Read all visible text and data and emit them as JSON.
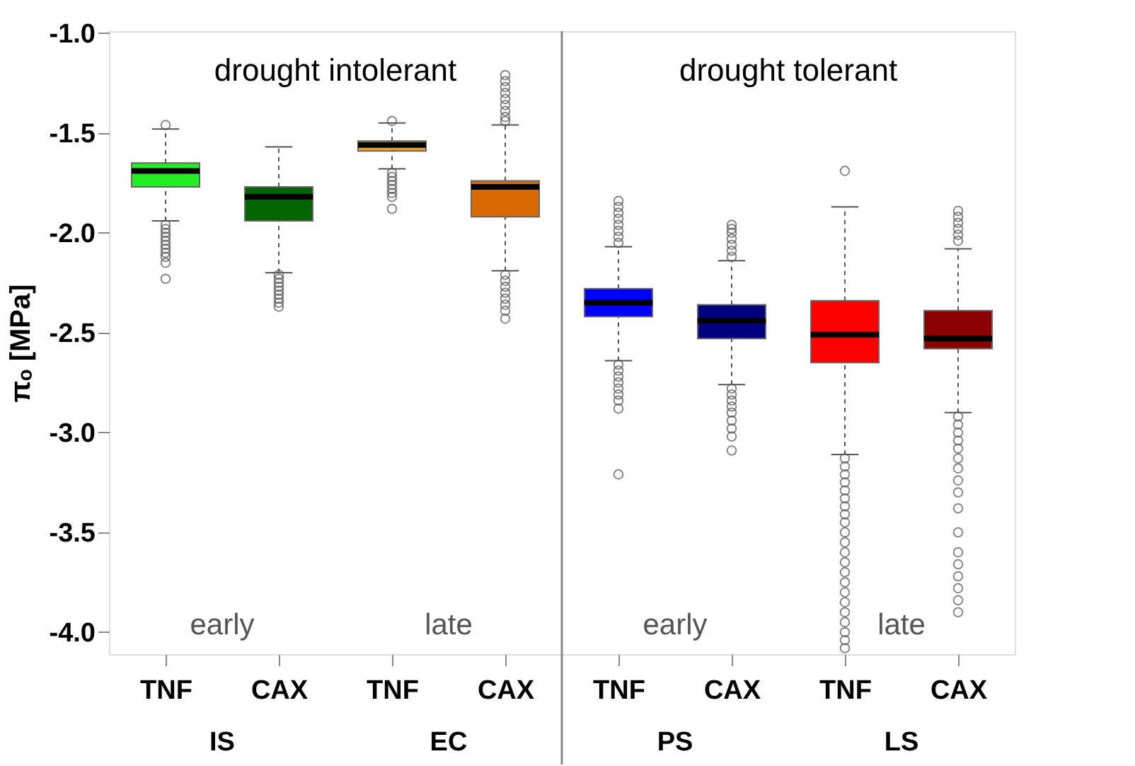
{
  "chart_data": {
    "type": "box",
    "ylabel": "πₒ [MPa]",
    "categories": [
      "TNF",
      "CAX",
      "TNF",
      "CAX",
      "TNF",
      "CAX",
      "TNF",
      "CAX"
    ],
    "colors": [
      "#22ee22",
      "#006400",
      "#f0a020",
      "#d86a00",
      "#0000ff",
      "#000080",
      "#ff0000",
      "#8b0000"
    ],
    "boxes": [
      {
        "low": -1.94,
        "q1": -1.77,
        "median": -1.69,
        "q3": -1.65,
        "high": -1.48,
        "outliers": [
          -1.46,
          -1.96,
          -1.98,
          -2.0,
          -2.02,
          -2.04,
          -2.06,
          -2.08,
          -2.1,
          -2.12,
          -2.15,
          -2.23
        ]
      },
      {
        "low": -2.2,
        "q1": -1.94,
        "median": -1.82,
        "q3": -1.77,
        "high": -1.57,
        "outliers": [
          -2.21,
          -2.23,
          -2.25,
          -2.27,
          -2.29,
          -2.31,
          -2.33,
          -2.35,
          -2.37
        ]
      },
      {
        "low": -1.68,
        "q1": -1.59,
        "median": -1.56,
        "q3": -1.54,
        "high": -1.45,
        "outliers": [
          -1.44,
          -1.7,
          -1.72,
          -1.74,
          -1.76,
          -1.78,
          -1.8,
          -1.82,
          -1.88
        ]
      },
      {
        "low": -2.19,
        "q1": -1.92,
        "median": -1.77,
        "q3": -1.74,
        "high": -1.46,
        "outliers": [
          -1.21,
          -1.24,
          -1.27,
          -1.3,
          -1.33,
          -1.36,
          -1.39,
          -1.42,
          -1.44,
          -2.21,
          -2.24,
          -2.27,
          -2.3,
          -2.33,
          -2.36,
          -2.39,
          -2.43
        ]
      },
      {
        "low": -2.64,
        "q1": -2.42,
        "median": -2.35,
        "q3": -2.28,
        "high": -2.07,
        "outliers": [
          -1.84,
          -1.87,
          -1.9,
          -1.93,
          -1.96,
          -1.99,
          -2.02,
          -2.05,
          -2.66,
          -2.69,
          -2.72,
          -2.75,
          -2.78,
          -2.81,
          -2.84,
          -2.88,
          -3.21
        ]
      },
      {
        "low": -2.76,
        "q1": -2.53,
        "median": -2.44,
        "q3": -2.36,
        "high": -2.14,
        "outliers": [
          -1.96,
          -1.98,
          -2.0,
          -2.03,
          -2.06,
          -2.09,
          -2.12,
          -2.78,
          -2.81,
          -2.84,
          -2.87,
          -2.9,
          -2.94,
          -2.98,
          -3.02,
          -3.09
        ]
      },
      {
        "low": -3.11,
        "q1": -2.65,
        "median": -2.51,
        "q3": -2.34,
        "high": -1.87,
        "outliers": [
          -1.69,
          -3.13,
          -3.17,
          -3.21,
          -3.25,
          -3.29,
          -3.33,
          -3.37,
          -3.41,
          -3.45,
          -3.5,
          -3.55,
          -3.6,
          -3.65,
          -3.7,
          -3.75,
          -3.8,
          -3.85,
          -3.9,
          -3.95,
          -4.0,
          -4.04,
          -4.08
        ]
      },
      {
        "low": -2.9,
        "q1": -2.58,
        "median": -2.53,
        "q3": -2.39,
        "high": -2.08,
        "outliers": [
          -1.89,
          -1.92,
          -1.95,
          -1.98,
          -2.01,
          -2.04,
          -2.92,
          -2.96,
          -3.0,
          -3.04,
          -3.08,
          -3.13,
          -3.18,
          -3.24,
          -3.3,
          -3.38,
          -3.5,
          -3.6,
          -3.66,
          -3.72,
          -3.78,
          -3.84,
          -3.9
        ]
      }
    ],
    "ylim": [
      -4.11,
      -0.99
    ],
    "yticks": [
      {
        "value": -1,
        "label": "-1.0"
      },
      -1.5,
      {
        "value": -2,
        "label": "-2.0"
      },
      -2.5,
      {
        "value": -3,
        "label": "-3.0"
      },
      -3.5,
      {
        "value": -4,
        "label": "-4.0"
      }
    ],
    "grid": false,
    "annotations": [
      "drought intolerant",
      "drought tolerant",
      "early",
      "late",
      "early",
      "late",
      "IS",
      "EC",
      "PS",
      "LS"
    ]
  }
}
